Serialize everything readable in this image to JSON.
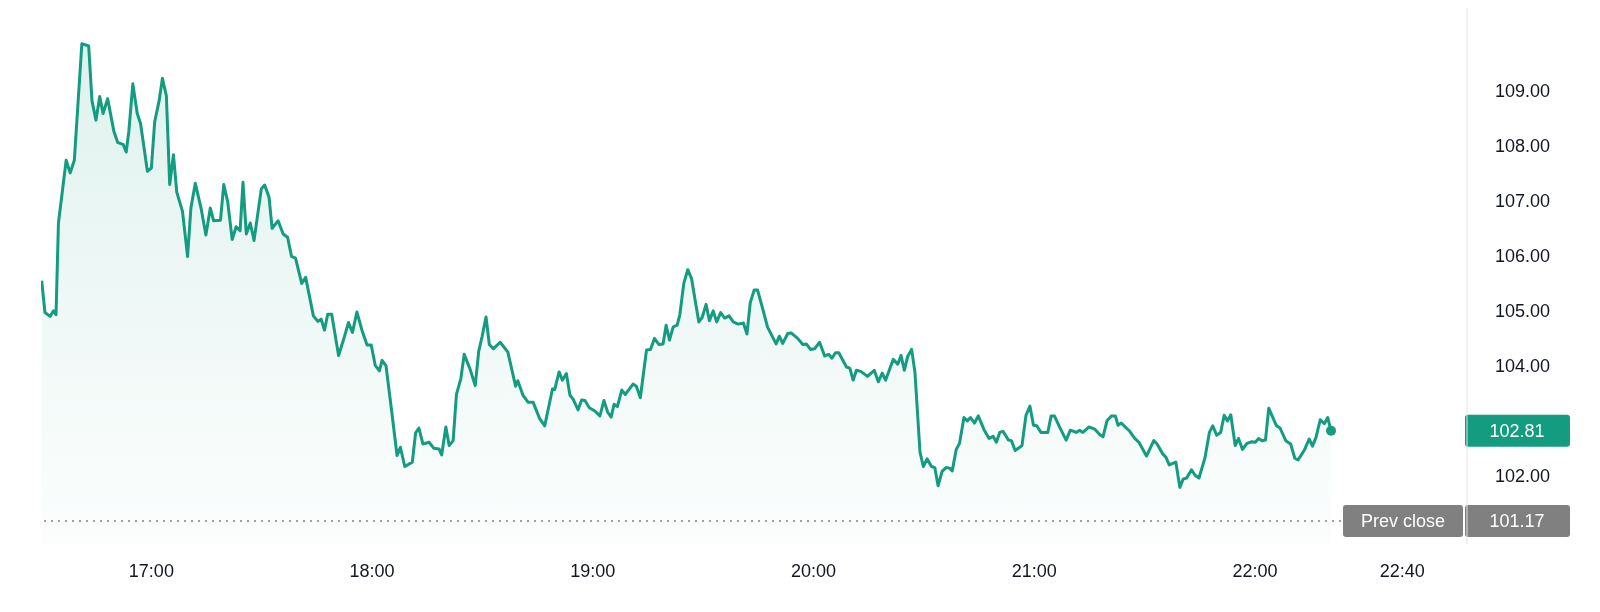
{
  "chart_data": {
    "type": "area",
    "x": [
      16.503,
      16.518,
      16.541,
      16.556,
      16.568,
      16.579,
      16.614,
      16.632,
      16.651,
      16.685,
      16.716,
      16.731,
      16.749,
      16.766,
      16.781,
      16.802,
      16.83,
      16.848,
      16.872,
      16.886,
      16.898,
      16.916,
      16.936,
      16.951,
      16.982,
      17.0,
      17.015,
      17.035,
      17.05,
      17.068,
      17.083,
      17.1,
      17.115,
      17.141,
      17.164,
      17.179,
      17.199,
      17.225,
      17.247,
      17.267,
      17.282,
      17.313,
      17.328,
      17.346,
      17.366,
      17.384,
      17.402,
      17.415,
      17.43,
      17.448,
      17.465,
      17.498,
      17.513,
      17.533,
      17.547,
      17.574,
      17.597,
      17.617,
      17.635,
      17.653,
      17.681,
      17.699,
      17.734,
      17.754,
      17.769,
      17.784,
      17.799,
      17.817,
      17.848,
      17.87,
      17.893,
      17.911,
      17.931,
      17.954,
      17.977,
      17.996,
      18.014,
      18.033,
      18.045,
      18.063,
      18.09,
      18.113,
      18.128,
      18.148,
      18.182,
      18.197,
      18.212,
      18.23,
      18.258,
      18.28,
      18.303,
      18.315,
      18.334,
      18.349,
      18.367,
      18.382,
      18.402,
      18.417,
      18.443,
      18.467,
      18.483,
      18.498,
      18.516,
      18.531,
      18.549,
      18.58,
      18.615,
      18.65,
      18.66,
      18.683,
      18.706,
      18.729,
      18.759,
      18.782,
      18.817,
      18.827,
      18.847,
      18.862,
      18.88,
      18.896,
      18.911,
      18.933,
      18.949,
      18.964,
      18.984,
      19.009,
      19.032,
      19.05,
      19.067,
      19.083,
      19.096,
      19.111,
      19.131,
      19.147,
      19.182,
      19.197,
      19.215,
      19.243,
      19.261,
      19.279,
      19.299,
      19.318,
      19.332,
      19.347,
      19.364,
      19.382,
      19.394,
      19.412,
      19.43,
      19.447,
      19.48,
      19.495,
      19.513,
      19.528,
      19.545,
      19.561,
      19.579,
      19.597,
      19.617,
      19.636,
      19.658,
      19.682,
      19.698,
      19.713,
      19.731,
      19.746,
      19.768,
      19.791,
      19.83,
      19.845,
      19.86,
      19.883,
      19.898,
      19.928,
      19.951,
      19.967,
      19.986,
      20.004,
      20.027,
      20.05,
      20.068,
      20.083,
      20.099,
      20.114,
      20.149,
      20.164,
      20.179,
      20.194,
      20.214,
      20.244,
      20.275,
      20.293,
      20.311,
      20.326,
      20.361,
      20.381,
      20.396,
      20.411,
      20.426,
      20.444,
      20.459,
      20.482,
      20.497,
      20.514,
      20.534,
      20.549,
      20.564,
      20.582,
      20.6,
      20.616,
      20.628,
      20.646,
      20.661,
      20.681,
      20.696,
      20.711,
      20.729,
      20.746,
      20.772,
      20.795,
      20.813,
      20.828,
      20.843,
      20.858,
      20.883,
      20.896,
      20.913,
      20.944,
      20.962,
      20.98,
      20.996,
      21.011,
      21.03,
      21.061,
      21.076,
      21.091,
      21.114,
      21.144,
      21.163,
      21.19,
      21.205,
      21.22,
      21.248,
      21.273,
      21.296,
      21.311,
      21.329,
      21.349,
      21.367,
      21.379,
      21.394,
      21.432,
      21.455,
      21.474,
      21.508,
      21.541,
      21.556,
      21.581,
      21.596,
      21.611,
      21.641,
      21.659,
      21.674,
      21.69,
      21.712,
      21.728,
      21.746,
      21.773,
      21.793,
      21.808,
      21.826,
      21.844,
      21.86,
      21.875,
      21.89,
      21.91,
      21.925,
      21.943,
      21.963,
      21.985,
      22.001,
      22.016,
      22.031,
      22.047,
      22.062,
      22.077,
      22.097,
      22.113,
      22.139,
      22.161,
      22.18,
      22.195,
      22.222,
      22.245,
      22.26,
      22.276,
      22.295,
      22.314,
      22.329,
      22.344
    ],
    "values": [
      105.54,
      104.96,
      104.89,
      104.99,
      104.92,
      106.59,
      107.73,
      107.5,
      107.73,
      109.85,
      109.81,
      108.81,
      108.46,
      108.89,
      108.58,
      108.85,
      108.26,
      108.05,
      108.02,
      107.88,
      108.26,
      109.12,
      108.58,
      108.4,
      107.53,
      107.59,
      108.43,
      108.81,
      109.22,
      108.9,
      107.29,
      107.83,
      107.15,
      106.8,
      105.98,
      106.86,
      107.31,
      106.86,
      106.37,
      106.86,
      106.63,
      106.64,
      107.29,
      106.97,
      106.29,
      106.52,
      106.45,
      107.33,
      106.39,
      106.59,
      106.27,
      107.21,
      107.28,
      107.06,
      106.49,
      106.63,
      106.39,
      106.33,
      105.98,
      105.95,
      105.49,
      105.6,
      104.9,
      104.8,
      104.84,
      104.64,
      104.93,
      104.93,
      104.18,
      104.46,
      104.78,
      104.6,
      104.97,
      104.64,
      104.37,
      104.37,
      104.0,
      103.9,
      104.09,
      103.99,
      103.12,
      102.36,
      102.51,
      102.16,
      102.24,
      102.77,
      102.86,
      102.57,
      102.6,
      102.49,
      102.48,
      102.37,
      102.88,
      102.54,
      102.63,
      103.47,
      103.76,
      104.2,
      103.94,
      103.63,
      104.26,
      104.52,
      104.88,
      104.38,
      104.3,
      104.42,
      104.24,
      103.62,
      103.72,
      103.46,
      103.33,
      103.33,
      103.03,
      102.9,
      103.57,
      103.56,
      103.88,
      103.73,
      103.85,
      103.46,
      103.38,
      103.19,
      103.37,
      103.36,
      103.23,
      103.17,
      103.08,
      103.36,
      103.15,
      103.06,
      103.29,
      103.25,
      103.55,
      103.47,
      103.66,
      103.62,
      103.41,
      104.28,
      104.29,
      104.49,
      104.38,
      104.39,
      104.73,
      104.46,
      104.7,
      104.73,
      104.92,
      105.49,
      105.74,
      105.58,
      104.79,
      104.87,
      105.11,
      104.81,
      104.99,
      104.79,
      104.96,
      104.86,
      104.9,
      104.79,
      104.75,
      104.77,
      104.57,
      105.14,
      105.37,
      105.37,
      105.05,
      104.7,
      104.39,
      104.53,
      104.4,
      104.58,
      104.59,
      104.49,
      104.38,
      104.39,
      104.29,
      104.3,
      104.42,
      104.17,
      104.2,
      104.13,
      104.23,
      104.23,
      103.97,
      103.95,
      103.73,
      103.91,
      103.89,
      103.8,
      103.91,
      103.7,
      103.86,
      103.73,
      104.11,
      104.02,
      104.18,
      103.91,
      104.16,
      104.29,
      103.88,
      102.42,
      102.16,
      102.3,
      102.16,
      102.14,
      101.81,
      102.07,
      102.14,
      102.13,
      102.08,
      102.47,
      102.58,
      103.05,
      102.99,
      103.05,
      102.95,
      103.08,
      102.83,
      102.67,
      102.71,
      102.6,
      102.78,
      102.8,
      102.64,
      102.63,
      102.45,
      102.54,
      103.09,
      103.26,
      102.91,
      102.9,
      102.78,
      102.78,
      103.08,
      103.08,
      102.88,
      102.64,
      102.82,
      102.78,
      102.82,
      102.78,
      102.88,
      102.84,
      102.74,
      102.7,
      102.99,
      103.08,
      103.08,
      102.91,
      102.95,
      102.8,
      102.67,
      102.6,
      102.35,
      102.63,
      102.57,
      102.39,
      102.33,
      102.19,
      102.24,
      101.78,
      101.93,
      101.95,
      102.1,
      102.0,
      101.95,
      102.32,
      102.78,
      102.9,
      102.73,
      102.78,
      103.09,
      102.99,
      103.1,
      102.54,
      102.67,
      102.47,
      102.58,
      102.61,
      102.6,
      102.67,
      102.63,
      102.64,
      103.22,
      103.08,
      102.9,
      102.86,
      102.63,
      102.57,
      102.31,
      102.28,
      102.45,
      102.66,
      102.53,
      102.69,
      103.01,
      102.94,
      103.05,
      102.81
    ],
    "color": "#139c80",
    "xlim": [
      16.5,
      22.96
    ],
    "xticks": [
      {
        "value": 17,
        "label": "17:00"
      },
      {
        "value": 18,
        "label": "18:00"
      },
      {
        "value": 19,
        "label": "19:00"
      },
      {
        "value": 20,
        "label": "20:00"
      },
      {
        "value": 21,
        "label": "21:00"
      },
      {
        "value": 22,
        "label": "22:00"
      },
      {
        "value": 22.667,
        "label": "22:40"
      }
    ],
    "ylim": [
      100.75,
      110.5
    ],
    "yticks": [
      {
        "value": 102,
        "label": "102.00"
      },
      {
        "value": 104,
        "label": "104.00"
      },
      {
        "value": 105,
        "label": "105.00"
      },
      {
        "value": 106,
        "label": "106.00"
      },
      {
        "value": 107,
        "label": "107.00"
      },
      {
        "value": 108,
        "label": "108.00"
      },
      {
        "value": 109,
        "label": "109.00"
      }
    ],
    "ref_lines": [
      {
        "axis": "y",
        "value": 101.17,
        "label": "Prev close",
        "color": "#808080",
        "line_style": "dotted"
      }
    ],
    "annotations": [
      "102.81",
      "101.17"
    ]
  }
}
